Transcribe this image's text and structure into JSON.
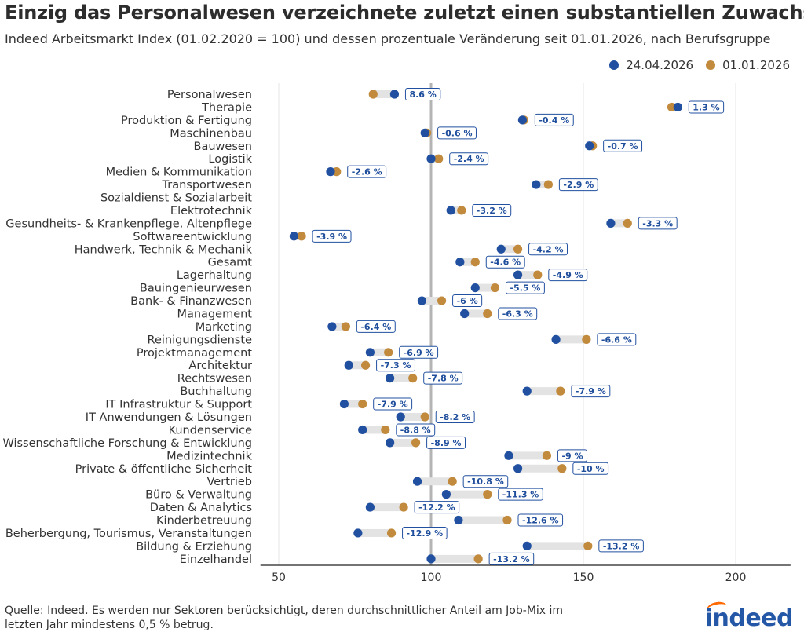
{
  "header": {
    "title": "Einzig das Personalwesen verzeichnete zuletzt einen substantiellen Zuwachs",
    "subtitle": "Indeed Arbeitsmarkt Index (01.02.2020 = 100) und dessen prozentuale Veränderung seit 01.01.2026, nach Berufsgruppe"
  },
  "footer": {
    "source": "Quelle: Indeed. Es werden nur Sektoren berücksichtigt, deren durchschnittlicher Anteil am Job-Mix im letzten Jahr mindestens 0,5 % betrug.",
    "logo_text": "indeed"
  },
  "colors": {
    "current": "#2150a0",
    "start": "#c18a3c",
    "connector": "#e3e3e3",
    "baseline": "#b4b4b4",
    "grid": "#e6e6e6",
    "label_border": "#2150a0",
    "label_text": "#1f4e9c"
  },
  "chart_data": {
    "type": "dumbbell",
    "x_ticks": [
      50,
      100,
      150,
      200
    ],
    "xlim": [
      44,
      218
    ],
    "reference_line": 100,
    "legend_position": "top-right",
    "series": [
      {
        "name": "24.04.2026",
        "key": "current"
      },
      {
        "name": "01.01.2026",
        "key": "start"
      }
    ],
    "rows": [
      {
        "category": "Personalwesen",
        "current": 88,
        "start": 81,
        "change": "8.6 %"
      },
      {
        "category": "Therapie",
        "current": 181,
        "start": 179,
        "change": "1.3 %"
      },
      {
        "category": "Produktion & Fertigung",
        "current": 130,
        "start": 130.5,
        "change": "-0.4 %"
      },
      {
        "category": "Maschinenbau",
        "current": 98,
        "start": 98.6,
        "change": "-0.6 %"
      },
      {
        "category": "Bauwesen",
        "current": 152,
        "start": 153,
        "change": "-0.7 %"
      },
      {
        "category": "Logistik",
        "current": 100,
        "start": 102.5,
        "change": "-2.4 %"
      },
      {
        "category": "Medien & Kommunikation",
        "current": 67,
        "start": 69,
        "change": "-2.6 %"
      },
      {
        "category": "Transportwesen",
        "current": 134.5,
        "start": 138.5,
        "change": "-2.9 %"
      },
      {
        "category": "Sozialdienst & Sozialarbeit",
        "current": null,
        "start": null,
        "change": null
      },
      {
        "category": "Elektrotechnik",
        "current": 106.5,
        "start": 110,
        "change": "-3.2 %"
      },
      {
        "category": "Gesundheits- & Krankenpflege, Altenpflege",
        "current": 159,
        "start": 164.5,
        "change": "-3.3 %"
      },
      {
        "category": "Softwareentwicklung",
        "current": 55,
        "start": 57.5,
        "change": "-3.9 %"
      },
      {
        "category": "Handwerk, Technik & Mechanik",
        "current": 123,
        "start": 128.5,
        "change": "-4.2 %"
      },
      {
        "category": "Gesamt",
        "current": 109.5,
        "start": 114.5,
        "change": "-4.6 %"
      },
      {
        "category": "Lagerhaltung",
        "current": 128.5,
        "start": 135,
        "change": "-4.9 %"
      },
      {
        "category": "Bauingenieurwesen",
        "current": 114.5,
        "start": 121,
        "change": "-5.5 %"
      },
      {
        "category": "Bank- & Finanzwesen",
        "current": 97,
        "start": 103.5,
        "change": "-6 %"
      },
      {
        "category": "Management",
        "current": 111,
        "start": 118.5,
        "change": "-6.3 %"
      },
      {
        "category": "Marketing",
        "current": 67.5,
        "start": 72,
        "change": "-6.4 %"
      },
      {
        "category": "Reinigungsdienste",
        "current": 141,
        "start": 151,
        "change": "-6.6 %"
      },
      {
        "category": "Projektmanagement",
        "current": 80,
        "start": 86,
        "change": "-6.9 %"
      },
      {
        "category": "Architektur",
        "current": 73,
        "start": 78.5,
        "change": "-7.3 %"
      },
      {
        "category": "Rechtswesen",
        "current": 86.5,
        "start": 94,
        "change": "-7.8 %"
      },
      {
        "category": "Buchhaltung",
        "current": 131.5,
        "start": 142.5,
        "change": "-7.9 %"
      },
      {
        "category": "IT Infrastruktur & Support",
        "current": 71.5,
        "start": 77.5,
        "change": "-7.9 %"
      },
      {
        "category": "IT Anwendungen & Lösungen",
        "current": 90,
        "start": 98,
        "change": "-8.2 %"
      },
      {
        "category": "Kundenservice",
        "current": 77.5,
        "start": 85,
        "change": "-8.8 %"
      },
      {
        "category": "Wissenschaftliche Forschung & Entwicklung",
        "current": 86.5,
        "start": 95,
        "change": "-8.9 %"
      },
      {
        "category": "Medizintechnik",
        "current": 125.5,
        "start": 138,
        "change": "-9 %"
      },
      {
        "category": "Private & öffentliche Sicherheit",
        "current": 128.5,
        "start": 143,
        "change": "-10 %"
      },
      {
        "category": "Vertrieb",
        "current": 95.5,
        "start": 107,
        "change": "-10.8 %"
      },
      {
        "category": "Büro & Verwaltung",
        "current": 105,
        "start": 118.5,
        "change": "-11.3 %"
      },
      {
        "category": "Daten & Analytics",
        "current": 80,
        "start": 91,
        "change": "-12.2 %"
      },
      {
        "category": "Kinderbetreuung",
        "current": 109,
        "start": 125,
        "change": "-12.6 %"
      },
      {
        "category": "Beherbergung, Tourismus, Veranstaltungen",
        "current": 76,
        "start": 87,
        "change": "-12.9 %"
      },
      {
        "category": "Bildung & Erziehung",
        "current": 131.5,
        "start": 151.5,
        "change": "-13.2 %"
      },
      {
        "category": "Einzelhandel",
        "current": 100,
        "start": 115.5,
        "change": "-13.2 %"
      }
    ]
  }
}
